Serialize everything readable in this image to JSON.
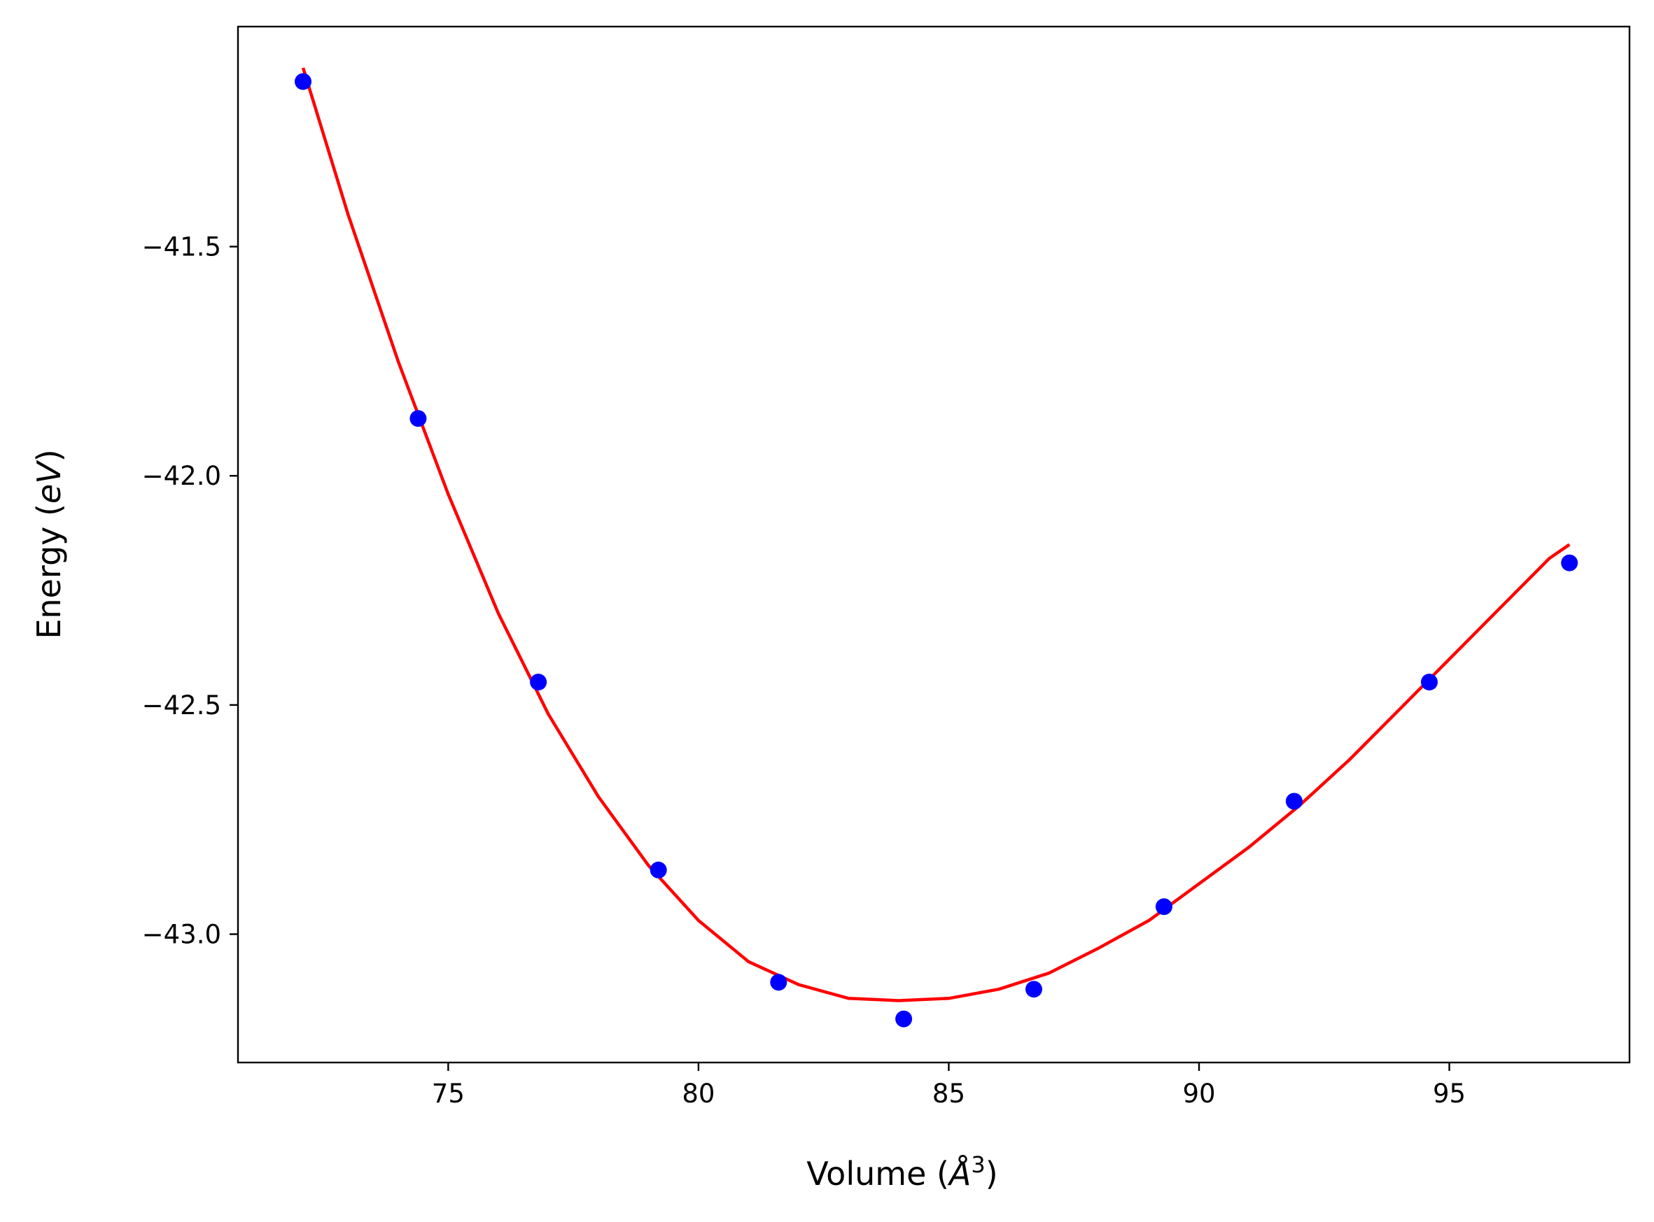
{
  "chart_data": {
    "type": "scatter",
    "xlabel_main": "Volume (",
    "xlabel_unit": "Å",
    "xlabel_exp": "3",
    "xlabel_close": ")",
    "ylabel_main": "Energy (",
    "ylabel_unit": "eV",
    "ylabel_close": ")",
    "xlim": [
      70.8,
      98.6
    ],
    "ylim": [
      -43.28,
      -41.02
    ],
    "xticks": [
      75,
      80,
      85,
      90,
      95
    ],
    "yticks": [
      -41.5,
      -42.0,
      -42.5,
      -43.0
    ],
    "ytick_labels": [
      "−41.5",
      "−42.0",
      "−42.5",
      "−43.0"
    ],
    "grid": false,
    "series": [
      {
        "kind": "points",
        "color": "#0000ff",
        "x": [
          72.1,
          74.4,
          76.8,
          79.2,
          81.6,
          84.1,
          86.7,
          89.3,
          91.9,
          94.6,
          97.4
        ],
        "y": [
          -41.14,
          -41.875,
          -42.45,
          -42.86,
          -43.105,
          -43.185,
          -43.12,
          -42.94,
          -42.71,
          -42.45,
          -42.19
        ]
      },
      {
        "kind": "fit-curve",
        "color": "#ff0000",
        "x": [
          72.1,
          73.0,
          74.0,
          75.0,
          76.0,
          77.0,
          78.0,
          79.0,
          80.0,
          81.0,
          82.0,
          83.0,
          84.0,
          85.0,
          86.0,
          87.0,
          88.0,
          89.0,
          90.0,
          91.0,
          92.0,
          93.0,
          94.0,
          95.0,
          96.0,
          97.0,
          97.4
        ],
        "y": [
          -41.11,
          -41.43,
          -41.75,
          -42.04,
          -42.3,
          -42.52,
          -42.7,
          -42.85,
          -42.97,
          -43.06,
          -43.11,
          -43.14,
          -43.145,
          -43.14,
          -43.12,
          -43.085,
          -43.03,
          -42.97,
          -42.89,
          -42.81,
          -42.72,
          -42.62,
          -42.51,
          -42.4,
          -42.29,
          -42.18,
          -42.15
        ]
      }
    ]
  }
}
